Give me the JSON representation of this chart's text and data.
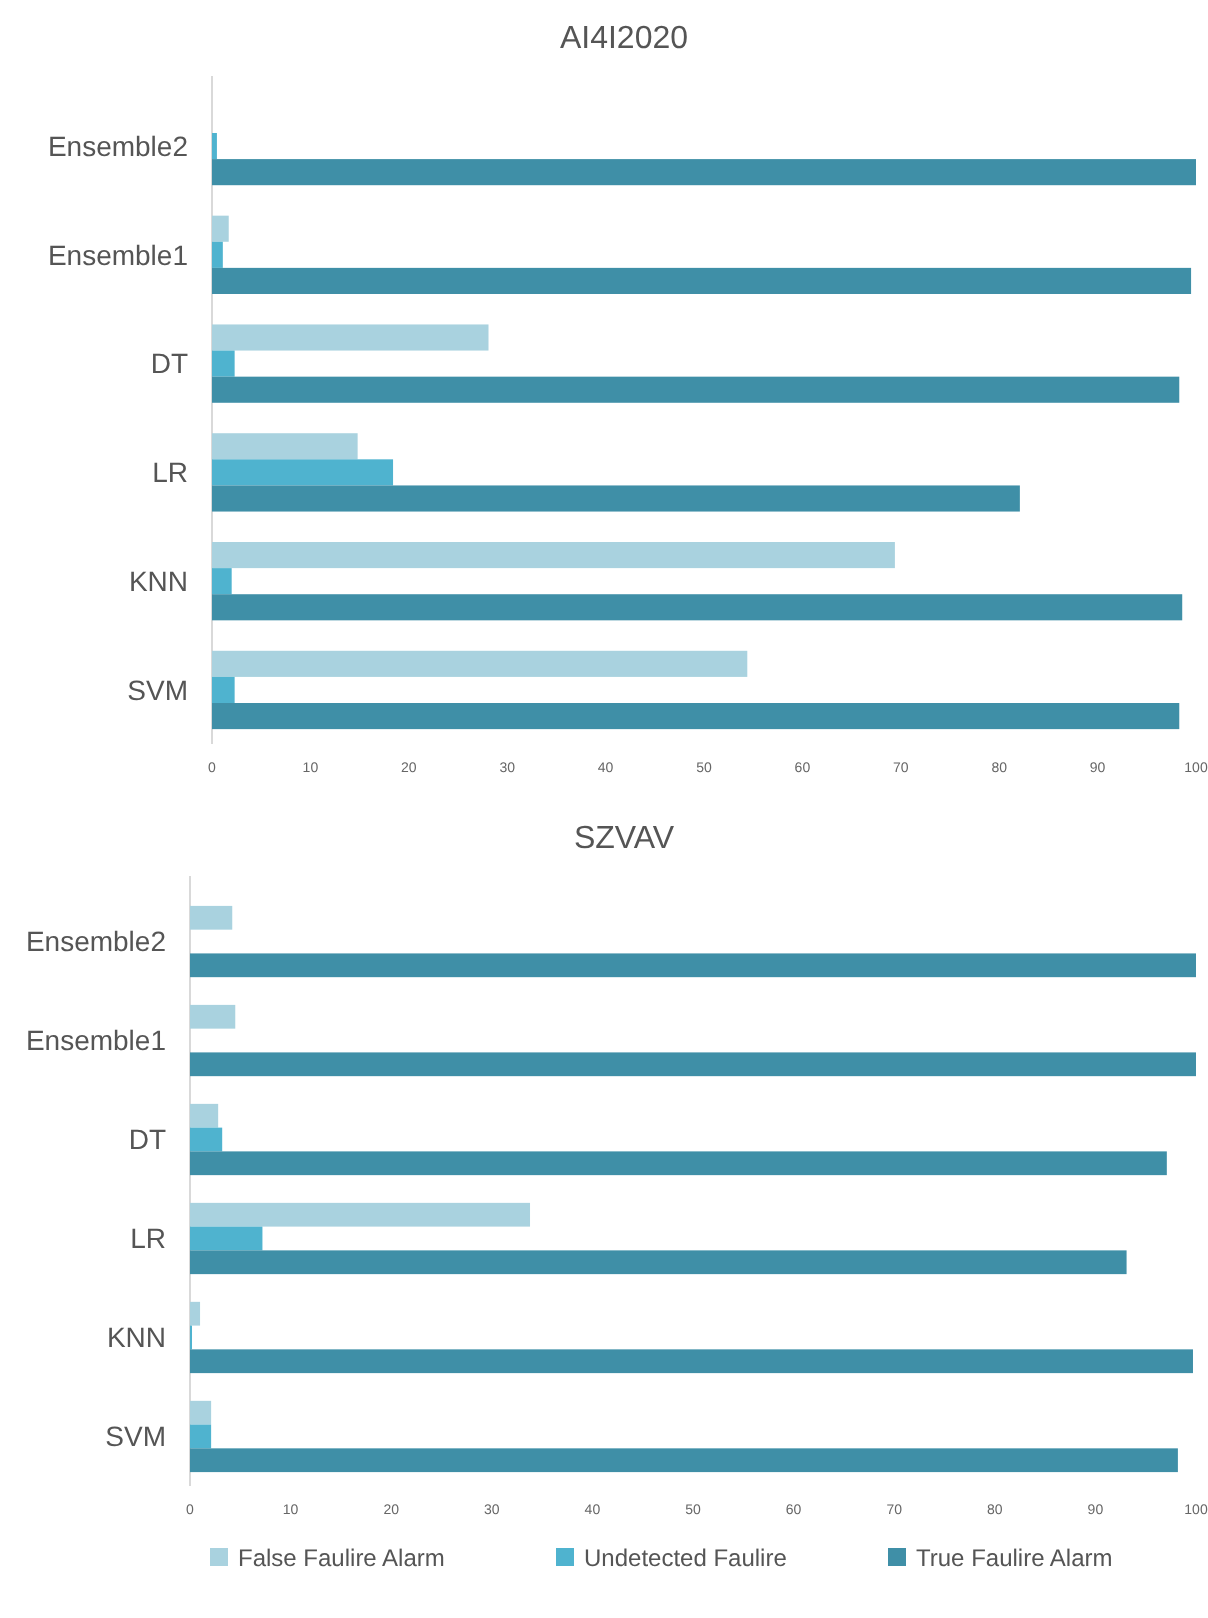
{
  "chart_data": [
    {
      "type": "bar",
      "orientation": "horizontal",
      "title": "AI4I2020",
      "categories": [
        "Ensemble2",
        "Ensemble1",
        "DT",
        "LR",
        "KNN",
        "SVM"
      ],
      "xlim": [
        0,
        100
      ],
      "xticks": [
        0,
        10,
        20,
        30,
        40,
        50,
        60,
        70,
        80,
        90,
        100
      ],
      "grid": false,
      "series": [
        {
          "color": "#a9d2df",
          "values": [
            0,
            1.7,
            28.1,
            14.8,
            69.4,
            54.4
          ]
        },
        {
          "color": "#4fb3cf",
          "values": [
            0.5,
            1.1,
            2.3,
            18.4,
            2.0,
            2.3
          ]
        },
        {
          "color": "#3f8fa7",
          "values": [
            100,
            99.5,
            98.3,
            82.1,
            98.6,
            98.3
          ]
        }
      ]
    },
    {
      "type": "bar",
      "orientation": "horizontal",
      "title": "SZVAV",
      "categories": [
        "Ensemble2",
        "Ensemble1",
        "DT",
        "LR",
        "KNN",
        "SVM"
      ],
      "xlim": [
        0,
        100
      ],
      "xticks": [
        0,
        10,
        20,
        30,
        40,
        50,
        60,
        70,
        80,
        90,
        100
      ],
      "grid": false,
      "legend": "bottom",
      "series": [
        {
          "name": "False Faulire Alarm",
          "color": "#a9d2df",
          "values": [
            4.2,
            4.5,
            2.8,
            33.8,
            1.0,
            2.1
          ]
        },
        {
          "name": "Undetected Faulire",
          "color": "#4fb3cf",
          "values": [
            0,
            0,
            3.2,
            7.2,
            0.2,
            2.1
          ]
        },
        {
          "name": "True Faulire Alarm",
          "color": "#3f8fa7",
          "values": [
            100,
            100,
            97.1,
            93.1,
            99.7,
            98.2
          ]
        }
      ]
    }
  ]
}
